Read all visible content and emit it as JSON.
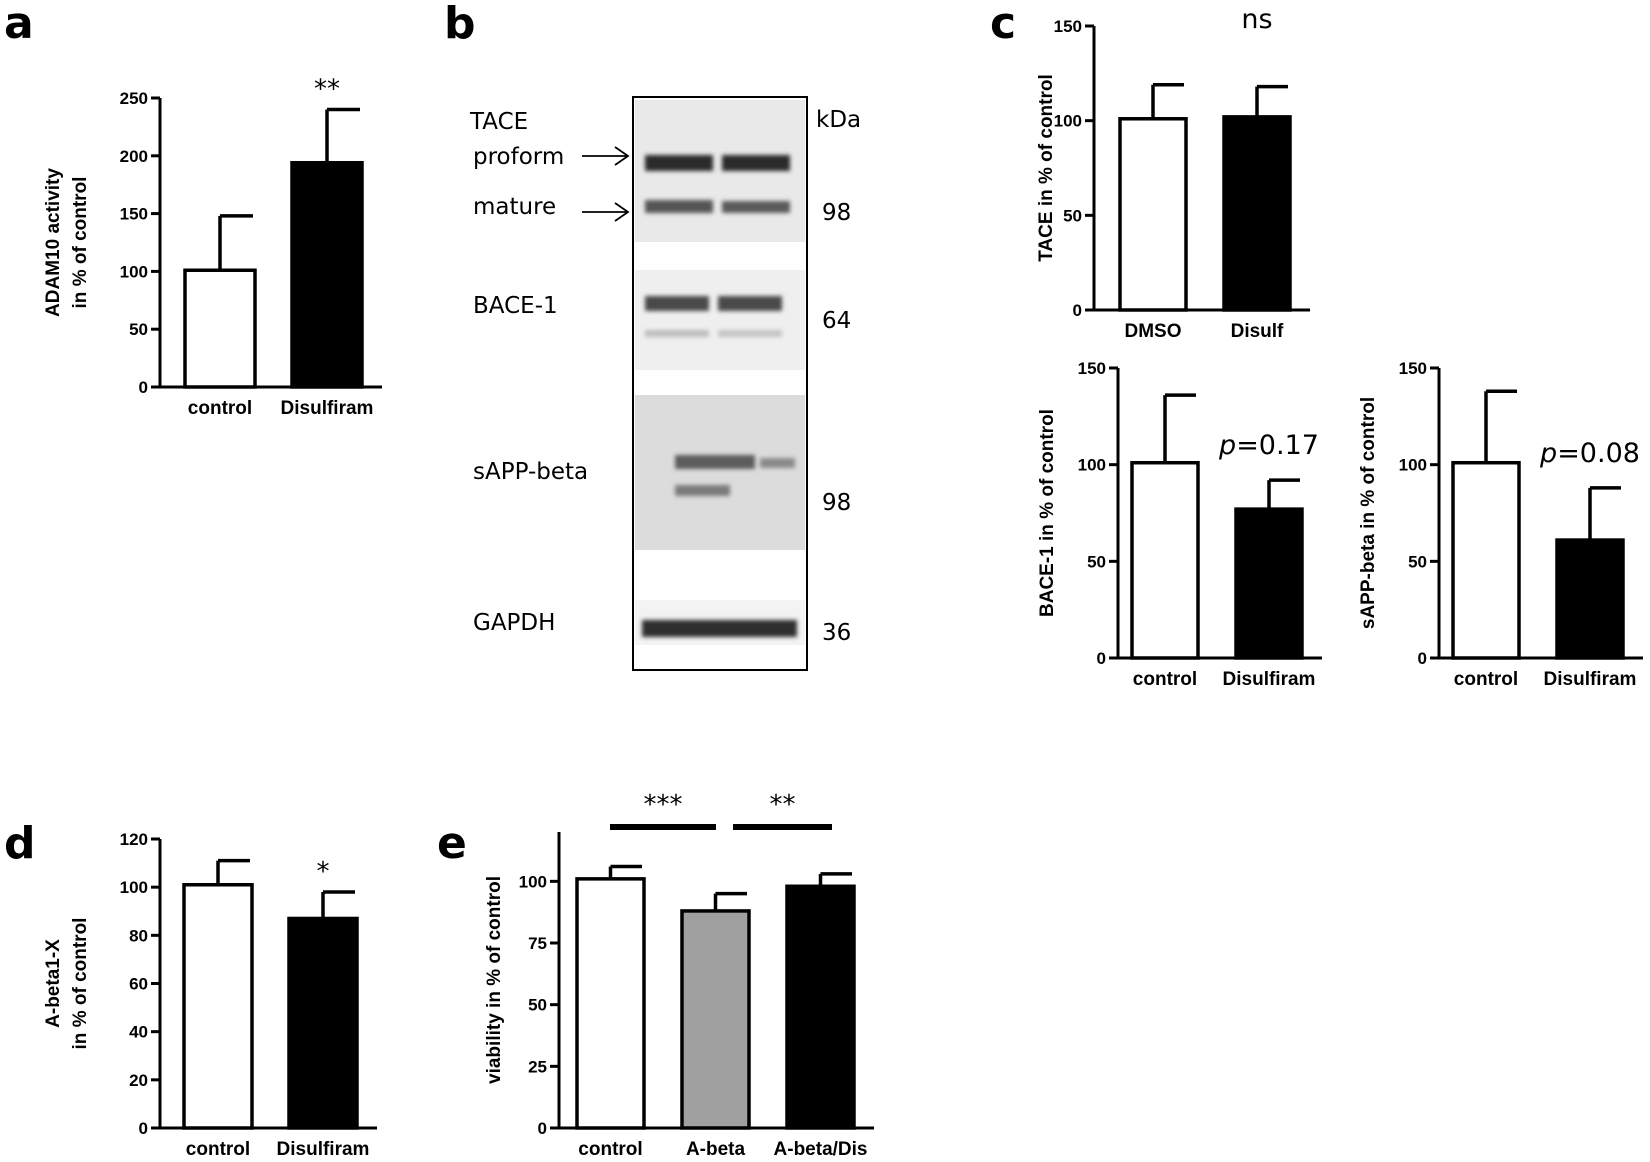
{
  "panel_labels": {
    "a": "a",
    "b": "b",
    "c": "c",
    "d": "d",
    "e": "e"
  },
  "colors": {
    "white_bar": "#ffffff",
    "black_bar": "#000000",
    "gray_bar": "#a0a0a0",
    "axis": "#000000"
  },
  "chart_data": [
    {
      "id": "a",
      "type": "bar",
      "categories": [
        "control",
        "Disulfiram"
      ],
      "values": [
        101,
        194
      ],
      "errors": [
        47,
        46
      ],
      "fills": [
        "white",
        "black"
      ],
      "ylabel": [
        "ADAM10 activity",
        "in % of control"
      ],
      "ylim": [
        0,
        250
      ],
      "yticks": [
        0,
        50,
        100,
        150,
        200,
        250
      ],
      "annotations": [
        {
          "index": 1,
          "text": "**"
        }
      ]
    },
    {
      "id": "c1",
      "type": "bar",
      "categories": [
        "DMSO",
        "Disulf"
      ],
      "values": [
        101,
        102
      ],
      "errors": [
        18,
        16
      ],
      "fills": [
        "white",
        "black"
      ],
      "ylabel": [
        "TACE in % of control"
      ],
      "ylim": [
        0,
        150
      ],
      "yticks": [
        0,
        50,
        100,
        150
      ],
      "annotations": [
        {
          "index": 1,
          "text": "ns"
        }
      ]
    },
    {
      "id": "c2",
      "type": "bar",
      "categories": [
        "control",
        "Disulfiram"
      ],
      "values": [
        101,
        77
      ],
      "errors": [
        35,
        15
      ],
      "fills": [
        "white",
        "black"
      ],
      "ylabel": [
        "BACE-1 in % of control"
      ],
      "ylim": [
        0,
        150
      ],
      "yticks": [
        0,
        50,
        100,
        150
      ],
      "annotations": [
        {
          "index": 1,
          "p": "p",
          "text": "=0.17"
        }
      ]
    },
    {
      "id": "c3",
      "type": "bar",
      "categories": [
        "control",
        "Disulfiram"
      ],
      "values": [
        101,
        61
      ],
      "errors": [
        37,
        27
      ],
      "fills": [
        "white",
        "black"
      ],
      "ylabel": [
        "sAPP-beta in % of control"
      ],
      "ylim": [
        0,
        150
      ],
      "yticks": [
        0,
        50,
        100,
        150
      ],
      "annotations": [
        {
          "index": 1,
          "p": "p",
          "text": "=0.08"
        }
      ]
    },
    {
      "id": "d",
      "type": "bar",
      "categories": [
        "control",
        "Disulfiram"
      ],
      "values": [
        101,
        87
      ],
      "errors": [
        10,
        11
      ],
      "fills": [
        "white",
        "black"
      ],
      "ylabel": [
        "A-beta1-X",
        "in % of control"
      ],
      "ylim": [
        0,
        120
      ],
      "yticks": [
        0,
        20,
        40,
        60,
        80,
        100,
        120
      ],
      "annotations": [
        {
          "index": 1,
          "text": "*"
        }
      ]
    },
    {
      "id": "e",
      "type": "bar",
      "categories": [
        "control",
        "A-beta",
        "A-beta/Dis"
      ],
      "values": [
        101,
        88,
        98
      ],
      "errors": [
        5,
        7,
        5
      ],
      "fills": [
        "white",
        "gray",
        "black"
      ],
      "ylabel": [
        "viability in % of control"
      ],
      "ylim": [
        0,
        120
      ],
      "yticks": [
        0,
        25,
        50,
        75,
        100
      ],
      "brackets": [
        {
          "from": 0,
          "to": 1,
          "text": "***"
        },
        {
          "from": 1,
          "to": 2,
          "text": "**"
        }
      ]
    }
  ],
  "blot": {
    "labels": [
      "TACE",
      "proform",
      "mature",
      "BACE-1",
      "sAPP-beta",
      "GAPDH"
    ],
    "kda_header": "kDa",
    "kda": [
      "98",
      "64",
      "98",
      "36"
    ]
  }
}
